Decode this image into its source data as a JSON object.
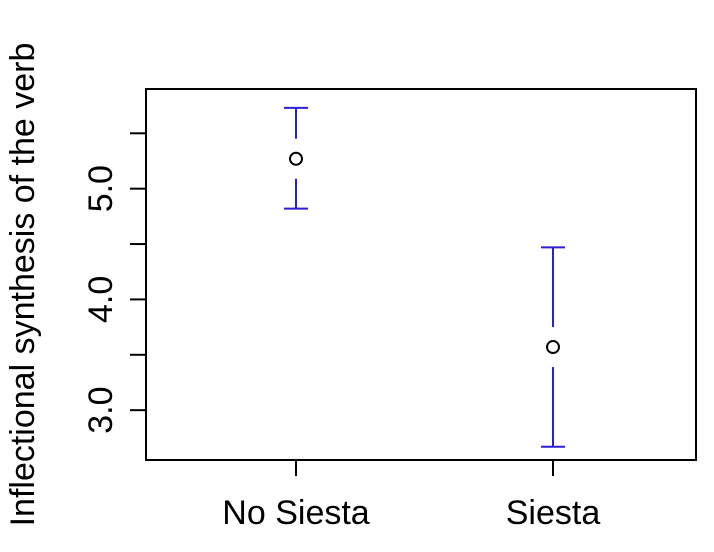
{
  "chart_data": {
    "type": "scatter",
    "title": "",
    "xlabel": "",
    "ylabel": "Inflectional synthesis of the verb",
    "categories": [
      "No Siesta",
      "Siesta"
    ],
    "series": [
      {
        "values": [
          5.27,
          3.57
        ],
        "lower": [
          4.82,
          2.67
        ],
        "upper": [
          5.73,
          4.47
        ]
      }
    ],
    "ylim": [
      2.55,
      5.9
    ],
    "yticks": [
      3.0,
      3.5,
      4.0,
      4.5,
      5.0,
      5.5
    ],
    "ytick_labels": [
      "3.0",
      "",
      "4.0",
      "",
      "5.0",
      ""
    ],
    "grid": false,
    "legend": "none",
    "colors": {
      "errorbar": "#2b1fd6",
      "point": "#000000",
      "axis": "#000000"
    }
  }
}
